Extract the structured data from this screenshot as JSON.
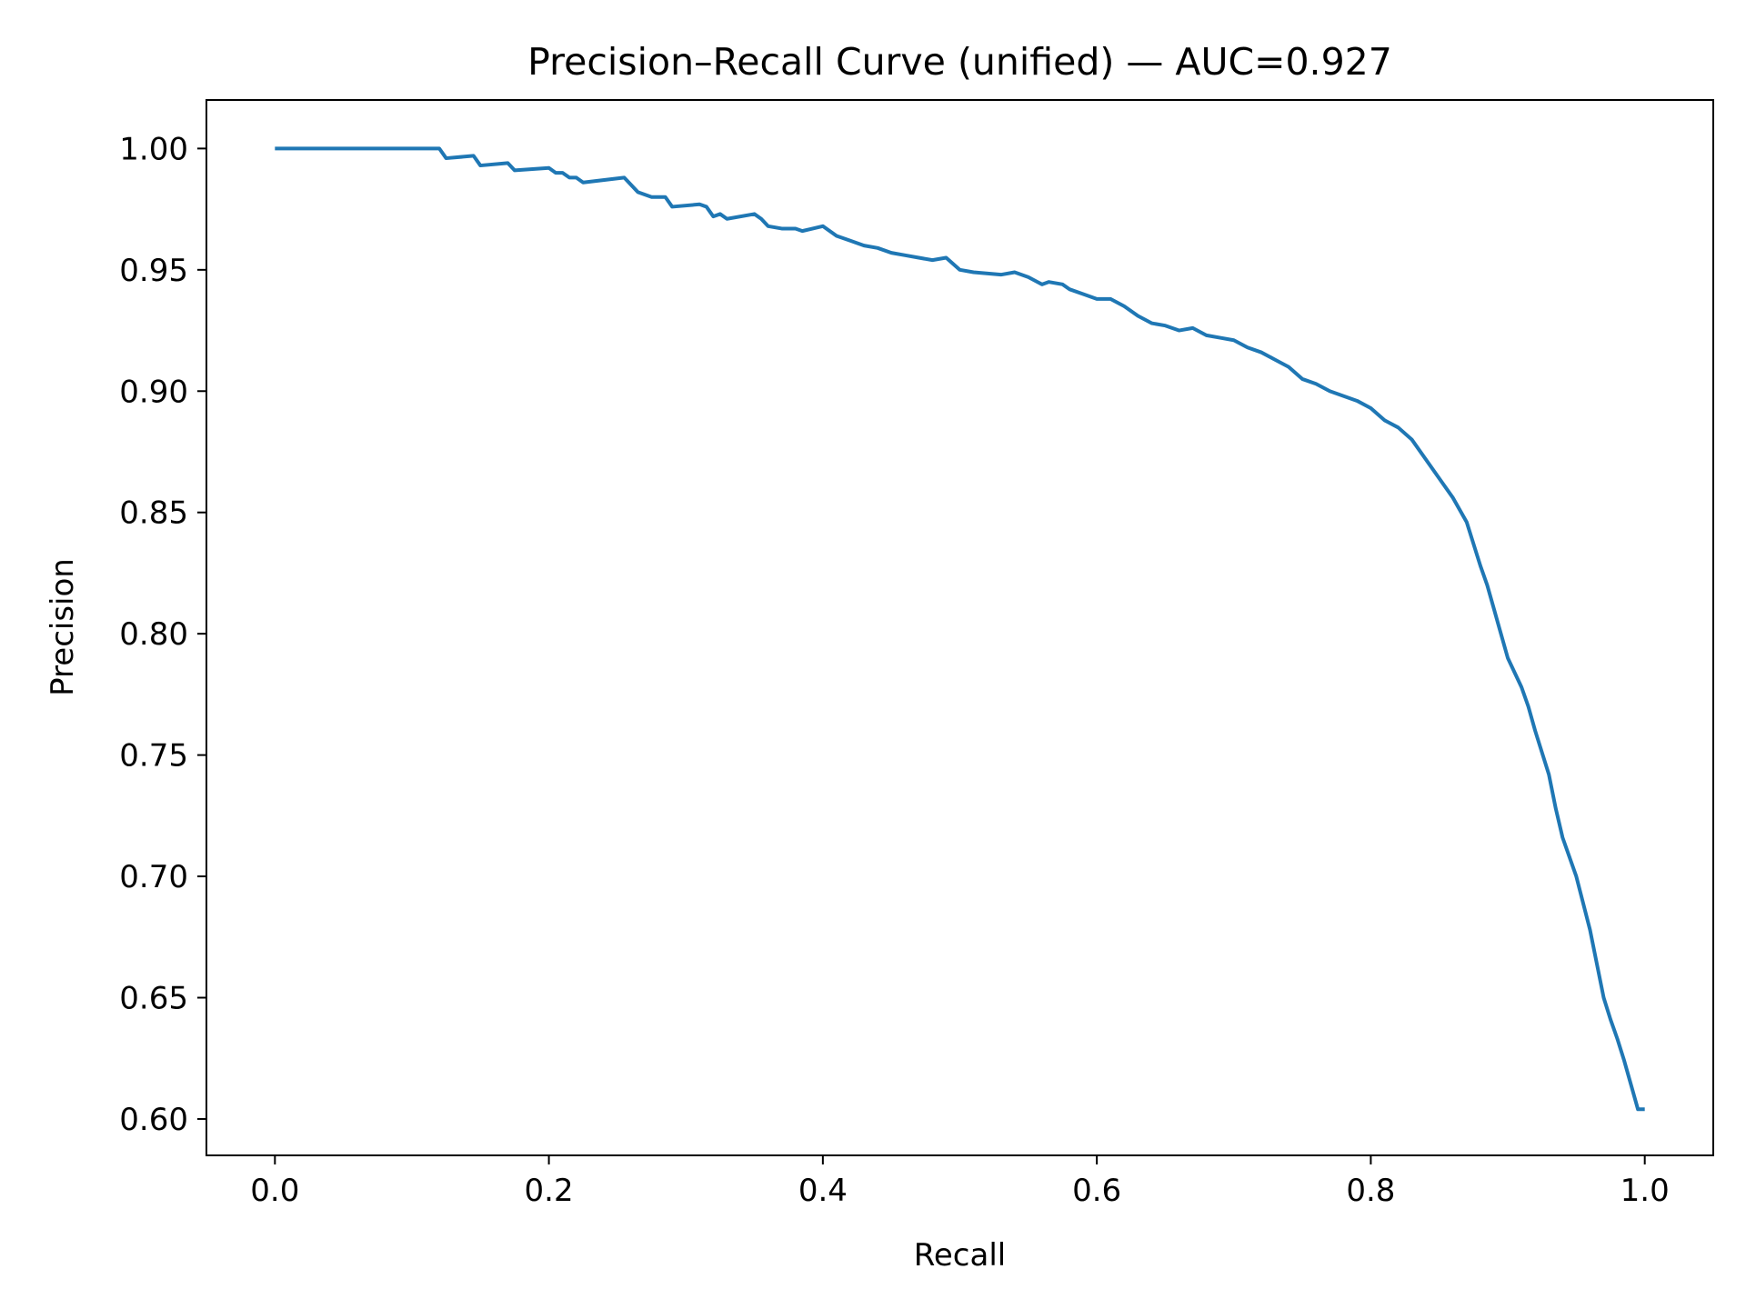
{
  "chart_data": {
    "type": "line",
    "title": "Precision–Recall Curve (unified) — AUC=0.927",
    "xlabel": "Recall",
    "ylabel": "Precision",
    "xlim": [
      -0.05,
      1.05
    ],
    "ylim": [
      0.585,
      1.02
    ],
    "xticks": [
      0.0,
      0.2,
      0.4,
      0.6,
      0.8,
      1.0
    ],
    "xtick_labels": [
      "0.0",
      "0.2",
      "0.4",
      "0.6",
      "0.8",
      "1.0"
    ],
    "yticks": [
      0.6,
      0.65,
      0.7,
      0.75,
      0.8,
      0.85,
      0.9,
      0.95,
      1.0
    ],
    "ytick_labels": [
      "0.60",
      "0.65",
      "0.70",
      "0.75",
      "0.80",
      "0.85",
      "0.90",
      "0.95",
      "1.00"
    ],
    "grid": false,
    "line_color": "#1f77b4",
    "series": [
      {
        "x": [
          0.0,
          0.12,
          0.125,
          0.145,
          0.15,
          0.17,
          0.175,
          0.2,
          0.205,
          0.21,
          0.215,
          0.22,
          0.225,
          0.255,
          0.26,
          0.265,
          0.275,
          0.285,
          0.29,
          0.31,
          0.315,
          0.32,
          0.325,
          0.33,
          0.35,
          0.355,
          0.36,
          0.37,
          0.38,
          0.385,
          0.4,
          0.41,
          0.42,
          0.43,
          0.44,
          0.45,
          0.46,
          0.47,
          0.48,
          0.49,
          0.5,
          0.51,
          0.53,
          0.54,
          0.55,
          0.56,
          0.565,
          0.575,
          0.58,
          0.59,
          0.6,
          0.61,
          0.62,
          0.63,
          0.64,
          0.65,
          0.66,
          0.67,
          0.68,
          0.69,
          0.7,
          0.71,
          0.72,
          0.73,
          0.74,
          0.75,
          0.76,
          0.77,
          0.78,
          0.79,
          0.8,
          0.81,
          0.82,
          0.83,
          0.84,
          0.85,
          0.86,
          0.87,
          0.875,
          0.88,
          0.885,
          0.89,
          0.895,
          0.9,
          0.91,
          0.915,
          0.92,
          0.93,
          0.935,
          0.94,
          0.95,
          0.96,
          0.965,
          0.97,
          0.975,
          0.98,
          0.985,
          0.99,
          0.995,
          1.0
        ],
        "y": [
          1.0,
          1.0,
          0.996,
          0.997,
          0.993,
          0.994,
          0.991,
          0.992,
          0.99,
          0.99,
          0.988,
          0.988,
          0.986,
          0.988,
          0.985,
          0.982,
          0.98,
          0.98,
          0.976,
          0.977,
          0.976,
          0.972,
          0.973,
          0.971,
          0.973,
          0.971,
          0.968,
          0.967,
          0.967,
          0.966,
          0.968,
          0.964,
          0.962,
          0.96,
          0.959,
          0.957,
          0.956,
          0.955,
          0.954,
          0.955,
          0.95,
          0.949,
          0.948,
          0.949,
          0.947,
          0.944,
          0.945,
          0.944,
          0.942,
          0.94,
          0.938,
          0.938,
          0.935,
          0.931,
          0.928,
          0.927,
          0.925,
          0.926,
          0.923,
          0.922,
          0.921,
          0.918,
          0.916,
          0.913,
          0.91,
          0.905,
          0.903,
          0.9,
          0.898,
          0.896,
          0.893,
          0.888,
          0.885,
          0.88,
          0.872,
          0.864,
          0.856,
          0.846,
          0.837,
          0.828,
          0.82,
          0.81,
          0.8,
          0.79,
          0.778,
          0.77,
          0.76,
          0.742,
          0.728,
          0.716,
          0.7,
          0.678,
          0.664,
          0.65,
          0.641,
          0.633,
          0.624,
          0.614,
          0.604,
          0.604
        ]
      }
    ]
  }
}
